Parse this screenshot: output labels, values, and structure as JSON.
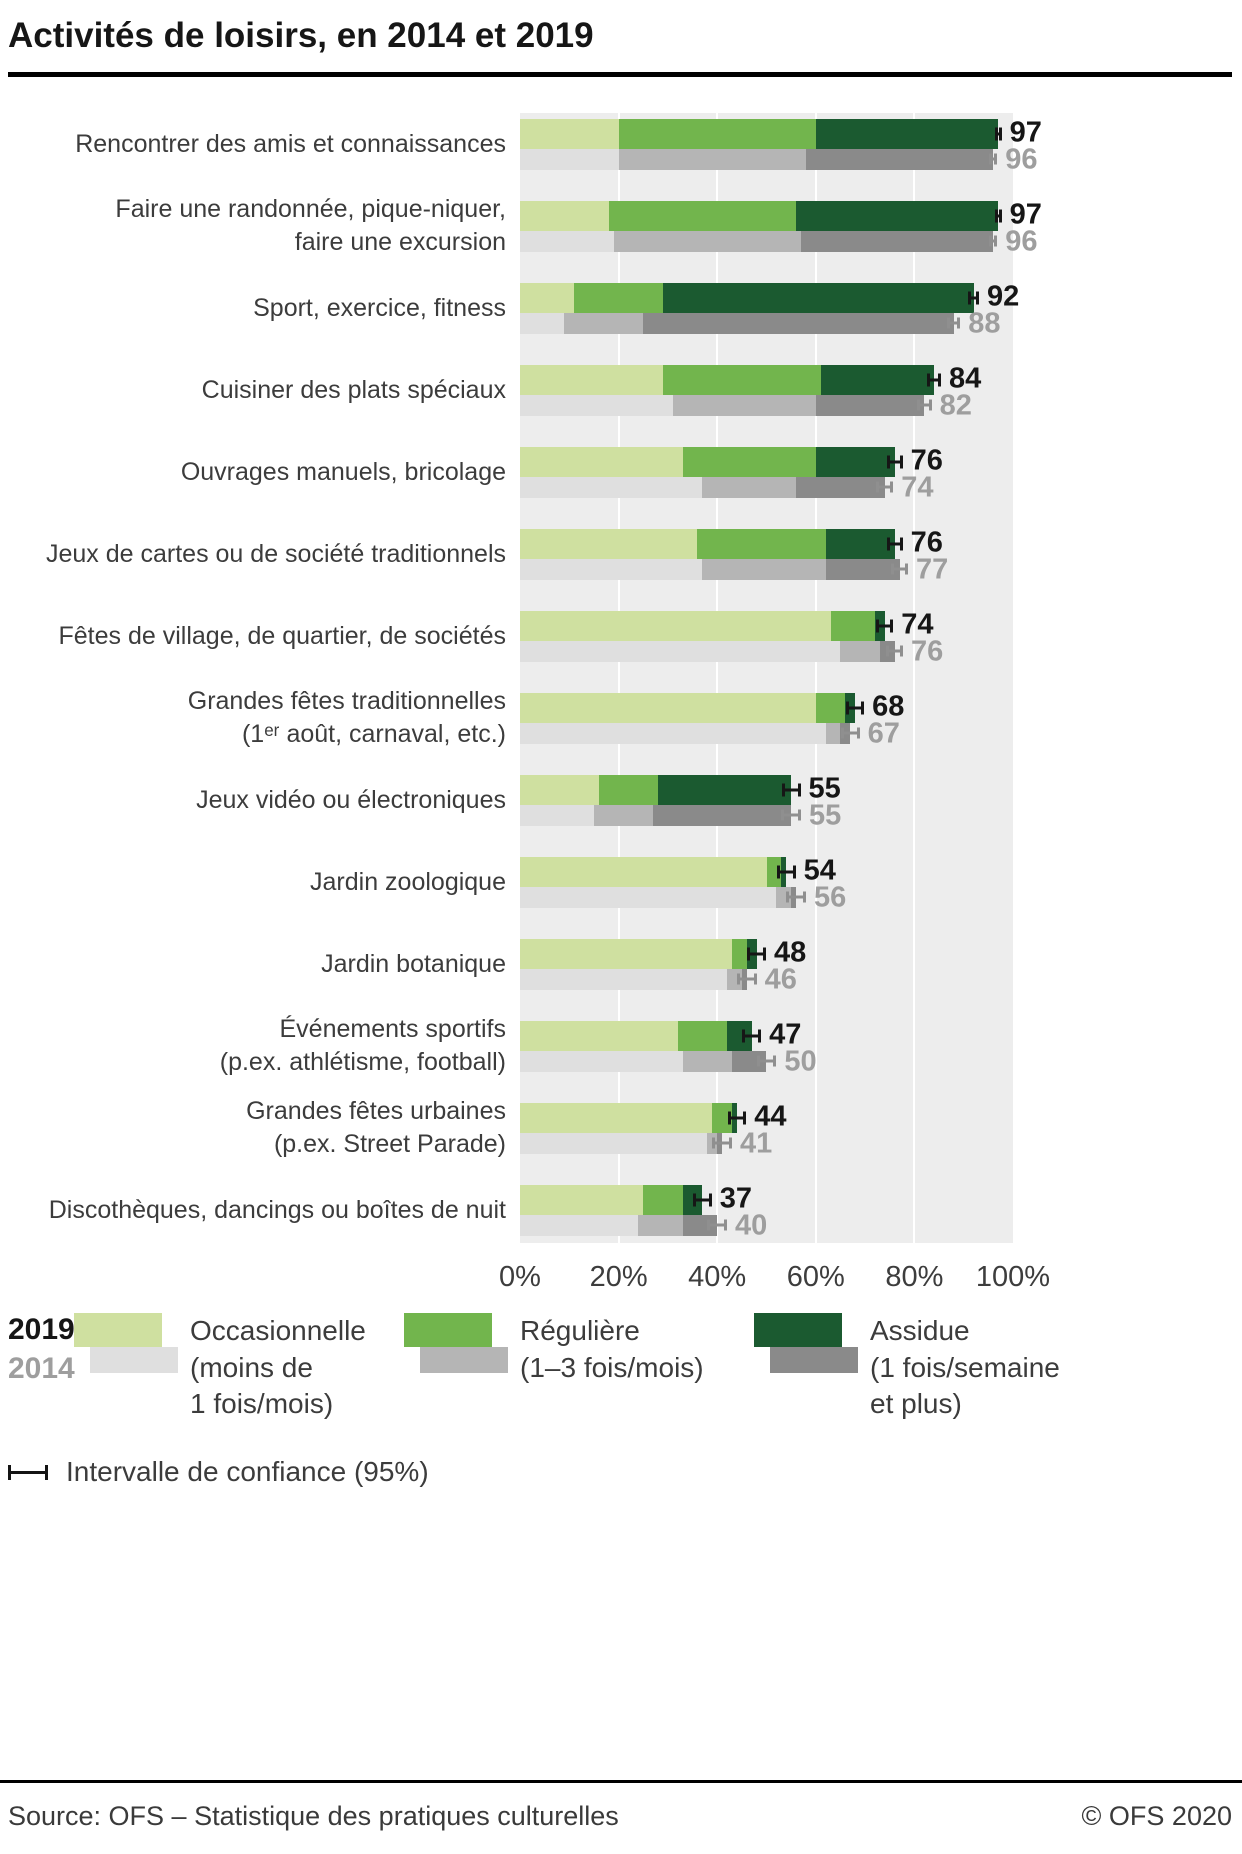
{
  "title": "Activités de loisirs, en 2014 et 2019",
  "footer": {
    "source": "Source: OFS – Statistique des pratiques culturelles",
    "copyright": "© OFS 2020"
  },
  "legend": {
    "year_2019": "2019",
    "year_2014": "2014",
    "items": [
      {
        "name": "occasionnelle",
        "lines": [
          "Occasionnelle",
          "(moins de",
          "1 fois/mois)"
        ]
      },
      {
        "name": "reguliere",
        "lines": [
          "Régulière",
          "(1–3 fois/mois)"
        ]
      },
      {
        "name": "assidue",
        "lines": [
          "Assidue",
          "(1 fois/semaine",
          "et plus)"
        ]
      }
    ],
    "ci_label": "Intervalle de confiance (95%)"
  },
  "colors": {
    "green_light": "#cfe0a0",
    "green_mid": "#72b54d",
    "green_dark": "#1b5a30",
    "gray_light": "#dfdfdf",
    "gray_mid": "#b5b5b5",
    "gray_dark": "#8a8a8a",
    "plot_bg": "#ededed",
    "grid": "#ffffff",
    "value_2019": "#161616",
    "value_2014": "#9e9e9e"
  },
  "chart_data": {
    "type": "bar",
    "orientation": "horizontal",
    "stacked": true,
    "title": "Activités de loisirs, en 2014 et 2019",
    "unit": "%",
    "xlim": [
      0,
      100
    ],
    "grid": true,
    "x_ticks": [
      {
        "label": "0%",
        "value": 0
      },
      {
        "label": "20%",
        "value": 20
      },
      {
        "label": "40%",
        "value": 40
      },
      {
        "label": "60%",
        "value": 60
      },
      {
        "label": "80%",
        "value": 80
      },
      {
        "label": "100%",
        "value": 100
      }
    ],
    "series_names": [
      "2019",
      "2014"
    ],
    "segment_names": [
      "Occasionnelle (moins de 1 fois/mois)",
      "Régulière (1–3 fois/mois)",
      "Assidue (1 fois/semaine et plus)"
    ],
    "rows": [
      {
        "category": "Rencontrer des amis et connaissances",
        "label_lines": [
          "Rencontrer des amis et connaissances"
        ],
        "y2019": {
          "total": 97,
          "segments": [
            20,
            40,
            37
          ],
          "ci": 0.7
        },
        "y2014": {
          "total": 96,
          "segments": [
            20,
            38,
            38
          ],
          "ci": 0.8
        }
      },
      {
        "category": "Faire une randonnée, pique-niquer, faire une excursion",
        "label_lines": [
          "Faire une randonnée, pique-niquer,",
          "faire une excursion"
        ],
        "y2019": {
          "total": 97,
          "segments": [
            18,
            38,
            41
          ],
          "ci": 0.7
        },
        "y2014": {
          "total": 96,
          "segments": [
            19,
            38,
            39
          ],
          "ci": 0.8
        }
      },
      {
        "category": "Sport, exercice, fitness",
        "label_lines": [
          "Sport, exercice, fitness"
        ],
        "y2019": {
          "total": 92,
          "segments": [
            11,
            18,
            63
          ],
          "ci": 1.1
        },
        "y2014": {
          "total": 88,
          "segments": [
            9,
            16,
            63
          ],
          "ci": 1.3
        }
      },
      {
        "category": "Cuisiner des plats spéciaux",
        "label_lines": [
          "Cuisiner des plats spéciaux"
        ],
        "y2019": {
          "total": 84,
          "segments": [
            29,
            32,
            23
          ],
          "ci": 1.4
        },
        "y2014": {
          "total": 82,
          "segments": [
            31,
            29,
            22
          ],
          "ci": 1.5
        }
      },
      {
        "category": "Ouvrages manuels, bricolage",
        "label_lines": [
          "Ouvrages manuels, bricolage"
        ],
        "y2019": {
          "total": 76,
          "segments": [
            33,
            27,
            16
          ],
          "ci": 1.6
        },
        "y2014": {
          "total": 74,
          "segments": [
            37,
            19,
            18
          ],
          "ci": 1.7
        }
      },
      {
        "category": "Jeux de cartes ou de société traditionnels",
        "label_lines": [
          "Jeux de cartes ou de société traditionnels"
        ],
        "y2019": {
          "total": 76,
          "segments": [
            36,
            26,
            14
          ],
          "ci": 1.6
        },
        "y2014": {
          "total": 77,
          "segments": [
            37,
            25,
            15
          ],
          "ci": 1.7
        }
      },
      {
        "category": "Fêtes de village, de quartier, de sociétés",
        "label_lines": [
          "Fêtes de village, de quartier, de sociétés"
        ],
        "y2019": {
          "total": 74,
          "segments": [
            63,
            9,
            2
          ],
          "ci": 1.7
        },
        "y2014": {
          "total": 76,
          "segments": [
            65,
            8,
            3
          ],
          "ci": 1.7
        }
      },
      {
        "category": "Grandes fêtes traditionnelles (1ᵉʳ août, carnaval, etc.)",
        "label_lines": [
          "Grandes fêtes traditionnelles",
          "(1ᵉʳ août, carnaval, etc.)"
        ],
        "y2019": {
          "total": 68,
          "segments": [
            60,
            6,
            2
          ],
          "ci": 1.8
        },
        "y2014": {
          "total": 67,
          "segments": [
            62,
            3,
            2
          ],
          "ci": 1.9
        }
      },
      {
        "category": "Jeux vidéo ou électroniques",
        "label_lines": [
          "Jeux vidéo ou électroniques"
        ],
        "y2019": {
          "total": 55,
          "segments": [
            16,
            12,
            27
          ],
          "ci": 1.9
        },
        "y2014": {
          "total": 55,
          "segments": [
            15,
            12,
            28
          ],
          "ci": 2.0
        }
      },
      {
        "category": "Jardin zoologique",
        "label_lines": [
          "Jardin zoologique"
        ],
        "y2019": {
          "total": 54,
          "segments": [
            50,
            3,
            1
          ],
          "ci": 1.9
        },
        "y2014": {
          "total": 56,
          "segments": [
            52,
            3,
            1
          ],
          "ci": 2.0
        }
      },
      {
        "category": "Jardin botanique",
        "label_lines": [
          "Jardin botanique"
        ],
        "y2019": {
          "total": 48,
          "segments": [
            43,
            3,
            2
          ],
          "ci": 1.9
        },
        "y2014": {
          "total": 46,
          "segments": [
            42,
            3,
            1
          ],
          "ci": 2.0
        }
      },
      {
        "category": "Événements sportifs (p.ex. athlétisme, football)",
        "label_lines": [
          "Événements sportifs",
          "(p.ex. athlétisme, football)"
        ],
        "y2019": {
          "total": 47,
          "segments": [
            32,
            10,
            5
          ],
          "ci": 1.9
        },
        "y2014": {
          "total": 50,
          "segments": [
            33,
            10,
            7
          ],
          "ci": 2.0
        }
      },
      {
        "category": "Grandes fêtes urbaines (p.ex. Street Parade)",
        "label_lines": [
          "Grandes fêtes urbaines",
          "(p.ex. Street Parade)"
        ],
        "y2019": {
          "total": 44,
          "segments": [
            39,
            4,
            1
          ],
          "ci": 1.9
        },
        "y2014": {
          "total": 41,
          "segments": [
            38,
            2,
            1
          ],
          "ci": 2.0
        }
      },
      {
        "category": "Discothèques, dancings ou boîtes de nuit",
        "label_lines": [
          "Discothèques, dancings ou boîtes de nuit"
        ],
        "y2019": {
          "total": 37,
          "segments": [
            25,
            8,
            4
          ],
          "ci": 1.9
        },
        "y2014": {
          "total": 40,
          "segments": [
            24,
            9,
            7
          ],
          "ci": 2.0
        }
      }
    ]
  }
}
